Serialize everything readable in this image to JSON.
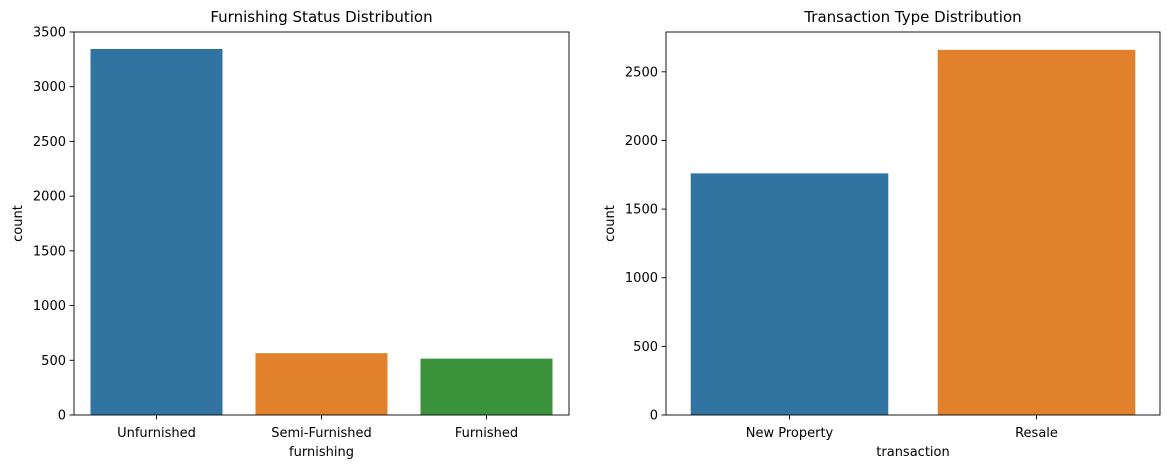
{
  "chart_data": [
    {
      "type": "bar",
      "title": "Furnishing Status Distribution",
      "xlabel": "furnishing",
      "ylabel": "count",
      "categories": [
        "Unfurnished",
        "Semi-Furnished",
        "Furnished"
      ],
      "values": [
        3345,
        565,
        515
      ],
      "colors": [
        "#3274a1",
        "#e1812c",
        "#3a923a"
      ],
      "ylim": [
        0,
        3500
      ],
      "yticks": [
        0,
        500,
        1000,
        1500,
        2000,
        2500,
        3000,
        3500
      ],
      "grid": false,
      "legend": "none"
    },
    {
      "type": "bar",
      "title": "Transaction Type Distribution",
      "xlabel": "transaction",
      "ylabel": "count",
      "categories": [
        "New Property",
        "Resale"
      ],
      "values": [
        1760,
        2660
      ],
      "colors": [
        "#3274a1",
        "#e1812c"
      ],
      "ylim": [
        0,
        2790
      ],
      "yticks": [
        0,
        500,
        1000,
        1500,
        2000,
        2500
      ],
      "grid": false,
      "legend": "none"
    }
  ]
}
